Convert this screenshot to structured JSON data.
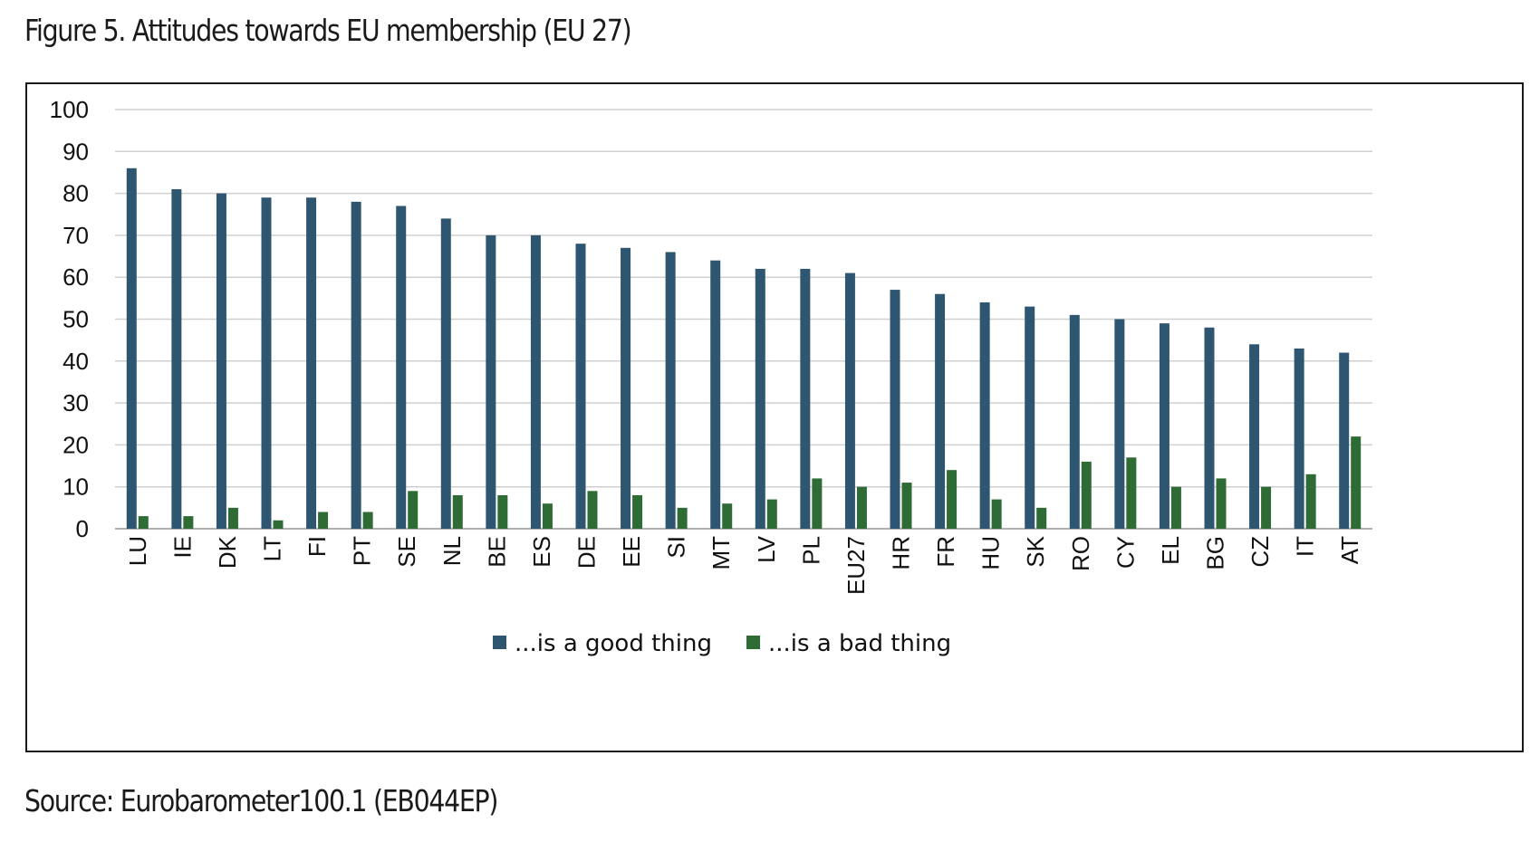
{
  "figure": {
    "title": "Figure 5. Attitudes towards EU membership (EU 27)",
    "source": "Source: Eurobarometer100.1 (EB044EP)"
  },
  "colors": {
    "good": "#2e5670",
    "bad": "#2f6b35",
    "grid": "#d0d0d0",
    "axis": "#b0b0b0"
  },
  "chart_data": {
    "type": "bar",
    "title": "",
    "xlabel": "",
    "ylabel": "",
    "ylim": [
      0,
      100
    ],
    "yticks": [
      0,
      10,
      20,
      30,
      40,
      50,
      60,
      70,
      80,
      90,
      100
    ],
    "grid": true,
    "legend_position": "bottom",
    "categories": [
      "LU",
      "IE",
      "DK",
      "LT",
      "FI",
      "PT",
      "SE",
      "NL",
      "BE",
      "ES",
      "DE",
      "EE",
      "SI",
      "MT",
      "LV",
      "PL",
      "EU27",
      "HR",
      "FR",
      "HU",
      "SK",
      "RO",
      "CY",
      "EL",
      "BG",
      "CZ",
      "IT",
      "AT"
    ],
    "series": [
      {
        "name": "...is a good thing",
        "color": "#2e5670",
        "values": [
          86,
          81,
          80,
          79,
          79,
          78,
          77,
          74,
          70,
          70,
          68,
          67,
          66,
          64,
          62,
          62,
          61,
          57,
          56,
          54,
          53,
          51,
          50,
          49,
          48,
          44,
          43,
          42
        ]
      },
      {
        "name": "...is a bad thing",
        "color": "#2f6b35",
        "values": [
          3,
          3,
          5,
          2,
          4,
          4,
          9,
          8,
          8,
          6,
          9,
          8,
          5,
          6,
          7,
          12,
          10,
          11,
          14,
          7,
          5,
          16,
          17,
          10,
          12,
          10,
          13,
          22
        ]
      }
    ]
  }
}
